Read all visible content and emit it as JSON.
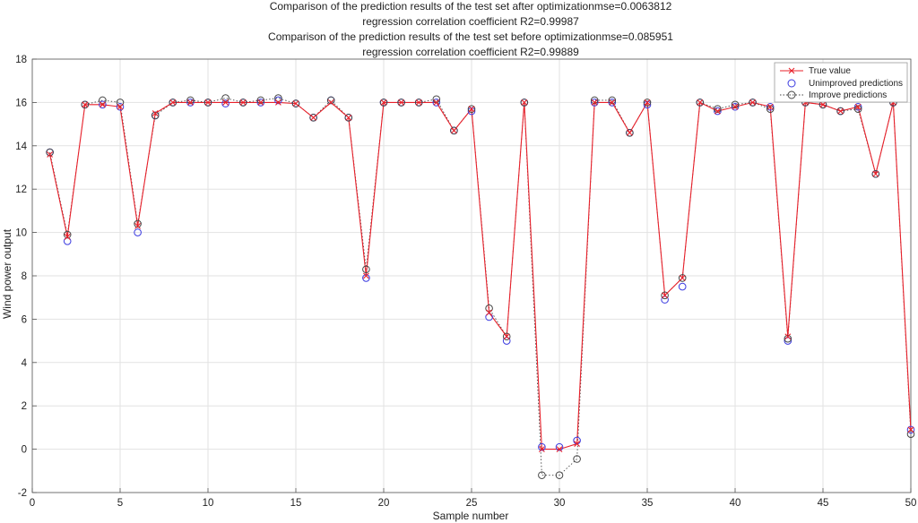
{
  "chart_data": {
    "type": "line",
    "title_lines": [
      "Comparison of the prediction results of the test set after optimizationmse=0.0063812",
      "regression correlation coefficient R2=0.99987",
      "Comparison of the prediction results of the test set before optimizationmse=0.085951",
      "regression correlation coefficient R2=0.99889"
    ],
    "xlabel": "Sample number",
    "ylabel": "Wind power output",
    "xlim": [
      0,
      50
    ],
    "ylim": [
      -2,
      18
    ],
    "xticks": [
      0,
      5,
      10,
      15,
      20,
      25,
      30,
      35,
      40,
      45,
      50
    ],
    "yticks": [
      -2,
      0,
      2,
      4,
      6,
      8,
      10,
      12,
      14,
      16,
      18
    ],
    "grid": true,
    "legend_position": "top-right",
    "x": [
      1,
      2,
      3,
      4,
      5,
      6,
      7,
      8,
      9,
      10,
      11,
      12,
      13,
      14,
      15,
      16,
      17,
      18,
      19,
      20,
      21,
      22,
      23,
      24,
      25,
      26,
      27,
      28,
      29,
      30,
      31,
      32,
      33,
      34,
      35,
      36,
      37,
      38,
      39,
      40,
      41,
      42,
      43,
      44,
      45,
      46,
      47,
      48,
      49,
      50
    ],
    "series": [
      {
        "name": "True value",
        "color": "#e8202a",
        "style": "solid-line-x-marker",
        "values": [
          13.6,
          9.8,
          15.9,
          15.9,
          15.8,
          10.3,
          15.5,
          16.0,
          16.0,
          16.0,
          16.0,
          16.0,
          16.0,
          16.0,
          15.95,
          15.3,
          16.0,
          15.3,
          8.0,
          16.0,
          16.0,
          16.0,
          16.0,
          14.7,
          15.7,
          6.3,
          5.2,
          16.0,
          0.0,
          0.0,
          0.25,
          16.0,
          16.0,
          14.6,
          16.0,
          7.1,
          7.9,
          16.0,
          15.6,
          15.8,
          16.0,
          15.8,
          5.2,
          16.0,
          15.9,
          15.6,
          15.8,
          12.7,
          16.0,
          0.9
        ]
      },
      {
        "name": "Unimproved predictions",
        "color": "#3a3ae0",
        "style": "circle-marker",
        "values": [
          13.7,
          9.6,
          15.9,
          15.9,
          15.8,
          10.0,
          15.4,
          16.0,
          16.0,
          16.0,
          15.95,
          16.0,
          16.0,
          16.1,
          15.95,
          15.3,
          16.1,
          15.3,
          7.9,
          16.0,
          16.0,
          16.0,
          16.0,
          14.7,
          15.6,
          6.1,
          5.0,
          16.0,
          0.1,
          0.1,
          0.4,
          16.0,
          16.0,
          14.6,
          15.9,
          6.9,
          7.5,
          16.0,
          15.6,
          15.8,
          16.0,
          15.8,
          5.0,
          16.0,
          15.9,
          15.6,
          15.8,
          12.7,
          16.0,
          0.9
        ]
      },
      {
        "name": "Improve predictions",
        "color": "#444444",
        "style": "dotted-line-circle-marker",
        "values": [
          13.7,
          9.9,
          15.9,
          16.1,
          16.0,
          10.4,
          15.4,
          16.0,
          16.1,
          16.0,
          16.2,
          16.0,
          16.1,
          16.2,
          15.95,
          15.3,
          16.1,
          15.3,
          8.3,
          16.0,
          16.0,
          16.0,
          16.15,
          14.7,
          15.7,
          6.5,
          5.2,
          16.0,
          -1.2,
          -1.2,
          -0.45,
          16.1,
          16.1,
          14.6,
          16.0,
          7.1,
          7.9,
          16.0,
          15.7,
          15.9,
          16.0,
          15.7,
          5.1,
          16.0,
          15.9,
          15.6,
          15.7,
          12.7,
          16.0,
          0.7
        ]
      }
    ]
  }
}
